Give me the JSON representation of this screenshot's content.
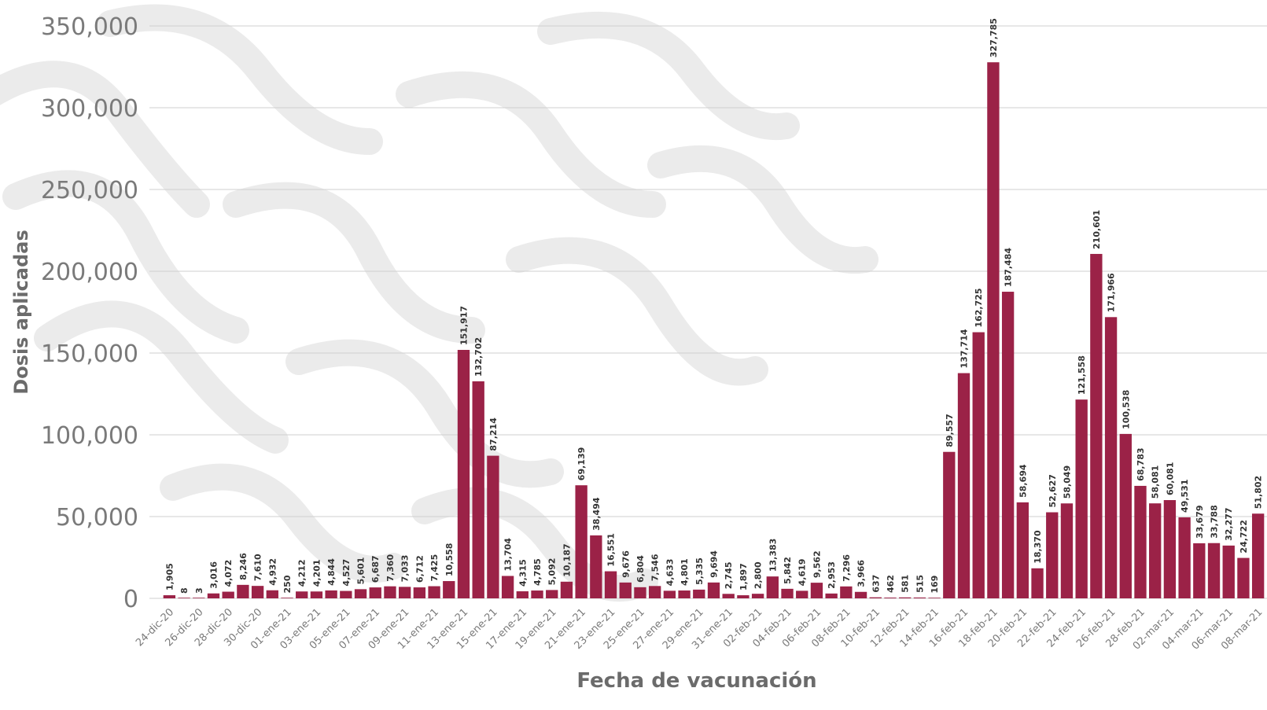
{
  "chart_data": {
    "type": "bar",
    "title": "",
    "xlabel": "Fecha de vacunación",
    "ylabel": "Dosis aplicadas",
    "ylim": [
      0,
      350000
    ],
    "yticks": [
      0,
      50000,
      100000,
      150000,
      200000,
      250000,
      300000,
      350000
    ],
    "ytick_labels": [
      "0",
      "50,000",
      "100,000",
      "150,000",
      "200,000",
      "250,000",
      "300,000",
      "350,000"
    ],
    "grid": true,
    "legend": "none",
    "bar_color": "#9b2247",
    "categories": [
      "24-dic-20",
      "25-dic-20",
      "26-dic-20",
      "27-dic-20",
      "28-dic-20",
      "29-dic-20",
      "30-dic-20",
      "31-dic-20",
      "01-ene-21",
      "02-ene-21",
      "03-ene-21",
      "04-ene-21",
      "05-ene-21",
      "06-ene-21",
      "07-ene-21",
      "08-ene-21",
      "09-ene-21",
      "10-ene-21",
      "11-ene-21",
      "12-ene-21",
      "13-ene-21",
      "14-ene-21",
      "15-ene-21",
      "16-ene-21",
      "17-ene-21",
      "18-ene-21",
      "19-ene-21",
      "20-ene-21",
      "21-ene-21",
      "22-ene-21",
      "23-ene-21",
      "24-ene-21",
      "25-ene-21",
      "26-ene-21",
      "27-ene-21",
      "28-ene-21",
      "29-ene-21",
      "30-ene-21",
      "31-ene-21",
      "01-feb-21",
      "02-feb-21",
      "03-feb-21",
      "04-feb-21",
      "05-feb-21",
      "06-feb-21",
      "07-feb-21",
      "08-feb-21",
      "09-feb-21",
      "10-feb-21",
      "11-feb-21",
      "12-feb-21",
      "13-feb-21",
      "14-feb-21",
      "15-feb-21",
      "16-feb-21",
      "17-feb-21",
      "18-feb-21",
      "19-feb-21",
      "20-feb-21",
      "21-feb-21",
      "22-feb-21",
      "23-feb-21",
      "24-feb-21",
      "25-feb-21",
      "26-feb-21",
      "27-feb-21",
      "28-feb-21",
      "01-mar-21",
      "02-mar-21",
      "03-mar-21",
      "04-mar-21",
      "05-mar-21",
      "06-mar-21",
      "07-mar-21",
      "08-mar-21"
    ],
    "visible_tick_labels": [
      "24-dic-20",
      "26-dic-20",
      "28-dic-20",
      "30-dic-20",
      "01-ene-21",
      "03-ene-21",
      "05-ene-21",
      "07-ene-21",
      "09-ene-21",
      "11-ene-21",
      "13-ene-21",
      "15-ene-21",
      "17-ene-21",
      "19-ene-21",
      "21-ene-21",
      "23-ene-21",
      "25-ene-21",
      "27-ene-21",
      "29-ene-21",
      "31-ene-21",
      "02-feb-21",
      "04-feb-21",
      "06-feb-21",
      "08-feb-21",
      "10-feb-21",
      "12-feb-21",
      "14-feb-21",
      "16-feb-21",
      "18-feb-21",
      "20-feb-21",
      "22-feb-21",
      "24-feb-21",
      "26-feb-21",
      "28-feb-21",
      "02-mar-21",
      "04-mar-21",
      "06-mar-21",
      "08-mar-21"
    ],
    "values": [
      1905,
      8,
      3,
      3016,
      4072,
      8246,
      7610,
      4932,
      250,
      4212,
      4201,
      4844,
      4527,
      5601,
      6687,
      7360,
      7033,
      6712,
      7425,
      10558,
      151917,
      132702,
      87214,
      13704,
      4315,
      4785,
      5092,
      10187,
      69139,
      38494,
      16551,
      9676,
      6804,
      7546,
      4633,
      4801,
      5335,
      9694,
      2745,
      1897,
      2800,
      13383,
      5842,
      4619,
      9562,
      2953,
      7296,
      3966,
      637,
      462,
      581,
      515,
      169,
      89557,
      137714,
      162725,
      327785,
      187484,
      58694,
      18370,
      52627,
      58049,
      121558,
      210601,
      171966,
      100538,
      68783,
      58081,
      60081,
      49531,
      33679,
      33788,
      32277,
      24722,
      51802
    ],
    "data_labels": [
      "1,905",
      "8",
      "3",
      "3,016",
      "4,072",
      "8,246",
      "7,610",
      "4,932",
      "250",
      "4,212",
      "4,201",
      "4,844",
      "4,527",
      "5,601",
      "6,687",
      "7,360",
      "7,033",
      "6,712",
      "7,425",
      "10,558",
      "151,917",
      "132,702",
      "87,214",
      "13,704",
      "4,315",
      "4,785",
      "5,092",
      "10,187",
      "69,139",
      "38,494",
      "16,551",
      "9,676",
      "6,804",
      "7,546",
      "4,633",
      "4,801",
      "5,335",
      "9,694",
      "2,745",
      "1,897",
      "2,800",
      "13,383",
      "5,842",
      "4,619",
      "9,562",
      "2,953",
      "7,296",
      "3,966",
      "637",
      "462",
      "581",
      "515",
      "169",
      "89,557",
      "137,714",
      "162,725",
      "327,785",
      "187,484",
      "58,694",
      "18,370",
      "52,627",
      "58,049",
      "121,558",
      "210,601",
      "171,966",
      "100,538",
      "68,783",
      "58,081",
      "60,081",
      "49,531",
      "33,679",
      "33,788",
      "32,277",
      "24,722",
      "51,802"
    ]
  }
}
